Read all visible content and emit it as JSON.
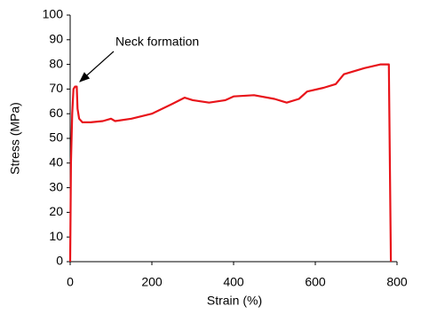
{
  "chart_data": {
    "type": "line",
    "xlabel": "Strain (%)",
    "ylabel": "Stress (MPa)",
    "annotation": "Neck formation",
    "color": "#e8141a",
    "x": [
      0,
      2,
      5,
      8,
      12,
      16,
      18,
      22,
      30,
      50,
      80,
      100,
      110,
      150,
      200,
      250,
      280,
      300,
      340,
      380,
      400,
      450,
      500,
      530,
      560,
      580,
      620,
      650,
      670,
      720,
      760,
      780,
      785
    ],
    "values": [
      0,
      40,
      60,
      70,
      71,
      71,
      62,
      58,
      56.5,
      56.5,
      57,
      58,
      57,
      58,
      60,
      64,
      66.5,
      65.5,
      64.5,
      65.5,
      67,
      67.5,
      66,
      64.5,
      66,
      69,
      70.5,
      72,
      76,
      78.5,
      80,
      80,
      0
    ],
    "xlim": [
      0,
      800
    ],
    "xticks": [
      0,
      200,
      400,
      600,
      800
    ],
    "ylim": [
      0,
      100
    ],
    "yticks": [
      0,
      10,
      20,
      30,
      40,
      50,
      60,
      70,
      80,
      90,
      100
    ],
    "grid": false
  }
}
